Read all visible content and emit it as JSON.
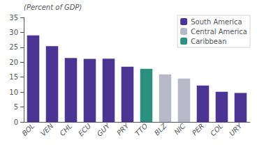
{
  "chart_data": {
    "type": "bar",
    "ylabel": "(Percent of GDP)",
    "categories": [
      "BOL",
      "VEN",
      "CHL",
      "ECU",
      "GUY",
      "PRY",
      "TTO",
      "BLZ",
      "NIC",
      "PER",
      "COL",
      "URY"
    ],
    "series": [
      {
        "name": "South America",
        "color": "#4b3594",
        "values": [
          29.0,
          25.4,
          21.4,
          21.1,
          21.2,
          18.5,
          null,
          null,
          null,
          12.2,
          10.1,
          9.7
        ]
      },
      {
        "name": "Central America",
        "color": "#b8b8c8",
        "values": [
          null,
          null,
          null,
          null,
          null,
          null,
          null,
          15.9,
          14.5,
          null,
          null,
          null
        ]
      },
      {
        "name": "Caribbean",
        "color": "#2a9080",
        "values": [
          null,
          null,
          null,
          null,
          null,
          null,
          17.8,
          null,
          null,
          null,
          null,
          null
        ]
      }
    ],
    "ylim": [
      0,
      35
    ],
    "yticks": [
      0,
      5,
      10,
      15,
      20,
      25,
      30,
      35
    ],
    "grid": false,
    "legend": "upper right"
  }
}
